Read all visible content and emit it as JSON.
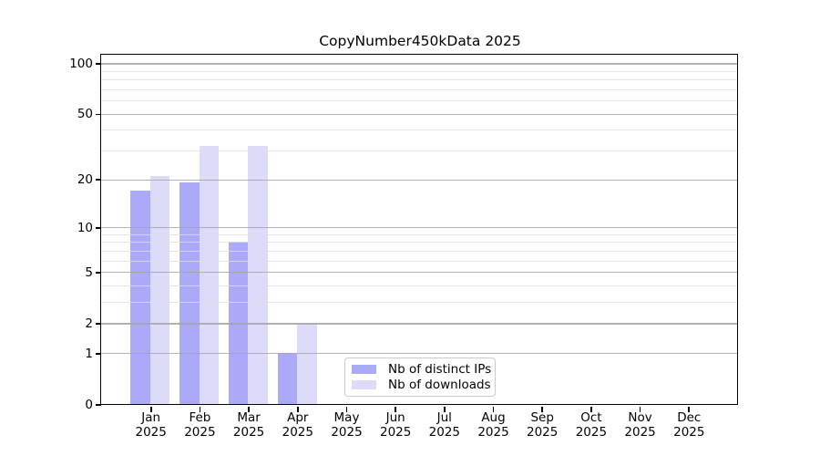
{
  "title": "CopyNumber450kData 2025",
  "chart_data": {
    "type": "bar",
    "title": "CopyNumber450kData 2025",
    "scale": "log10(1+x)",
    "categories": [
      "Jan",
      "Feb",
      "Mar",
      "Apr",
      "May",
      "Jun",
      "Jul",
      "Aug",
      "Sep",
      "Oct",
      "Nov",
      "Dec"
    ],
    "year": "2025",
    "series": [
      {
        "name": "Nb of distinct IPs",
        "color": "#aaaaf8",
        "values": [
          17,
          19,
          8,
          1,
          0,
          0,
          0,
          0,
          0,
          0,
          0,
          0
        ]
      },
      {
        "name": "Nb of downloads",
        "color": "#dcdcfa",
        "values": [
          21,
          32,
          32,
          2,
          0,
          0,
          0,
          0,
          0,
          0,
          0,
          0
        ]
      }
    ],
    "yticks": [
      0,
      1,
      2,
      5,
      10,
      20,
      50,
      100
    ],
    "minor_yticks": [
      3,
      4,
      6,
      7,
      8,
      9,
      30,
      40,
      60,
      70,
      80,
      90
    ],
    "ylim": [
      0,
      112
    ],
    "xlabel": "",
    "ylabel": "",
    "grid": "horizontal",
    "legend_position": "lower center"
  }
}
